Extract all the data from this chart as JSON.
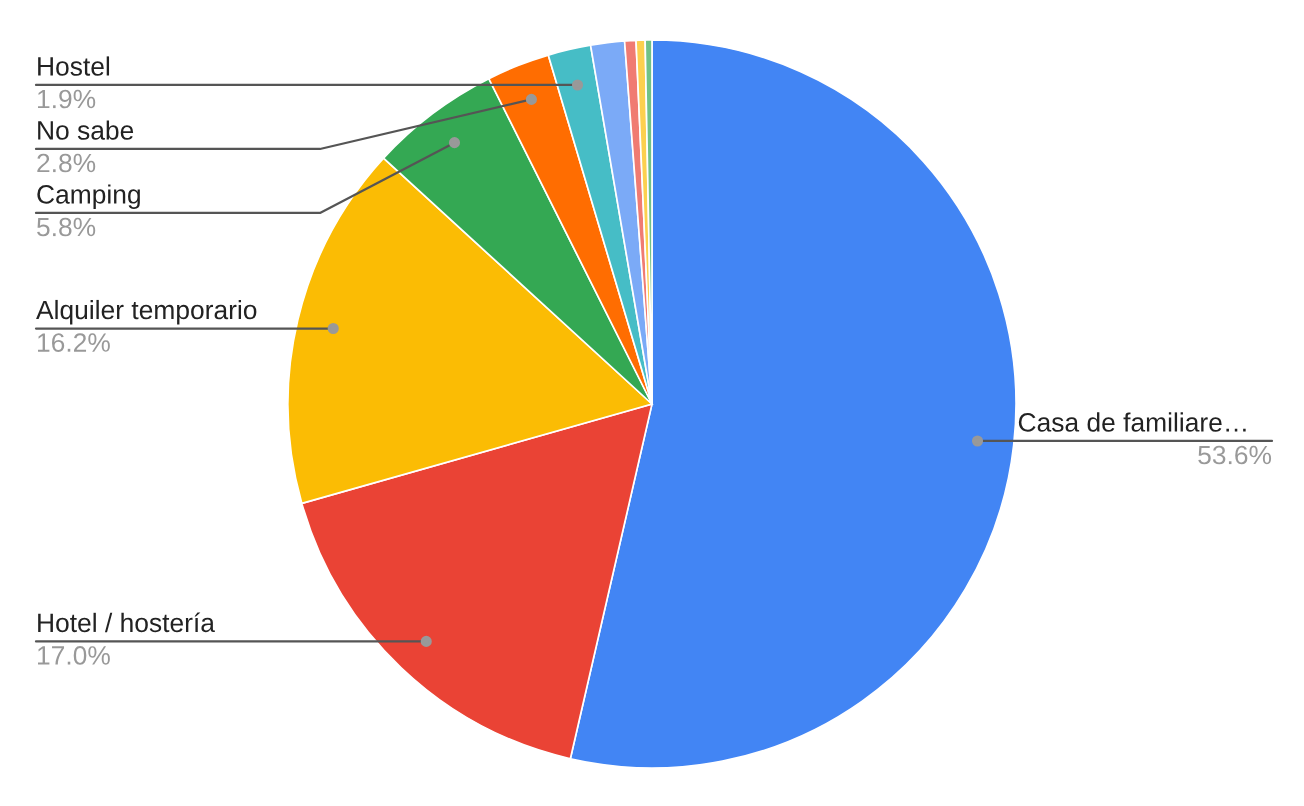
{
  "chart_data": {
    "type": "pie",
    "categories": [
      "Casa de familiare…",
      "Hotel / hostería",
      "Alquiler temporario",
      "Camping",
      "No sabe",
      "Hostel",
      null,
      null,
      null,
      null
    ],
    "values": [
      53.6,
      17.0,
      16.2,
      5.8,
      2.8,
      1.9,
      1.5,
      0.5,
      0.4,
      0.3
    ],
    "value_labels": [
      "53.6%",
      "17.0%",
      "16.2%",
      "5.8%",
      "2.8%",
      "1.9%",
      null,
      null,
      null,
      null
    ],
    "colors": [
      "#4285f4",
      "#ea4335",
      "#fbbc04",
      "#34a853",
      "#ff6d01",
      "#46bdc6",
      "#7baaf7",
      "#f07b72",
      "#fcd04f",
      "#71c287"
    ],
    "legend": false
  }
}
